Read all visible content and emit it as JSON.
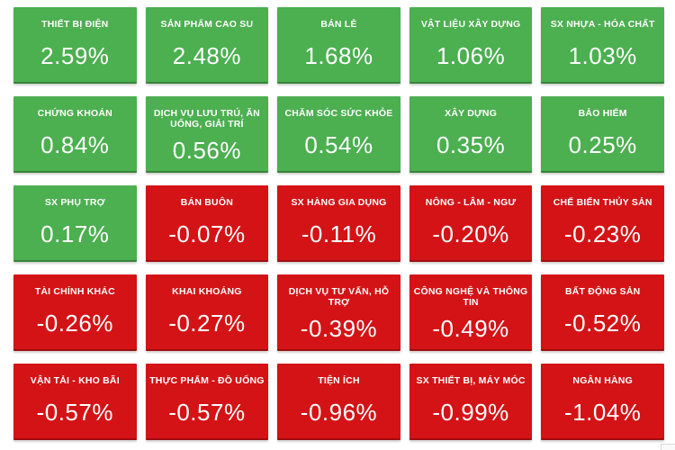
{
  "colors": {
    "positive": "#4caf50",
    "negative": "#d41316",
    "tile_text": "#ffffff",
    "background": "#ffffff"
  },
  "chart_data": {
    "type": "heatmap",
    "unit": "%",
    "layout": {
      "columns": 5,
      "rows": 5,
      "legend": "none",
      "order": "descending by change"
    },
    "points": [
      {
        "label": "THIẾT BỊ ĐIỆN",
        "value": 2.59,
        "display": "2.59%",
        "direction": "up"
      },
      {
        "label": "SẢN PHẨM CAO SU",
        "value": 2.48,
        "display": "2.48%",
        "direction": "up"
      },
      {
        "label": "BÁN LẺ",
        "value": 1.68,
        "display": "1.68%",
        "direction": "up"
      },
      {
        "label": "VẬT LIỆU XÂY DỰNG",
        "value": 1.06,
        "display": "1.06%",
        "direction": "up"
      },
      {
        "label": "SX NHỰA - HÓA CHẤT",
        "value": 1.03,
        "display": "1.03%",
        "direction": "up"
      },
      {
        "label": "CHỨNG KHOÁN",
        "value": 0.84,
        "display": "0.84%",
        "direction": "up"
      },
      {
        "label": "DỊCH VỤ LƯU TRÚ, ĂN UỐNG, GIẢI TRÍ",
        "value": 0.56,
        "display": "0.56%",
        "direction": "up"
      },
      {
        "label": "CHĂM SÓC SỨC KHỎE",
        "value": 0.54,
        "display": "0.54%",
        "direction": "up"
      },
      {
        "label": "XÂY DỰNG",
        "value": 0.35,
        "display": "0.35%",
        "direction": "up"
      },
      {
        "label": "BẢO HIỂM",
        "value": 0.25,
        "display": "0.25%",
        "direction": "up"
      },
      {
        "label": "SX PHỤ TRỢ",
        "value": 0.17,
        "display": "0.17%",
        "direction": "up"
      },
      {
        "label": "BÁN BUÔN",
        "value": -0.07,
        "display": "-0.07%",
        "direction": "down"
      },
      {
        "label": "SX HÀNG GIA DỤNG",
        "value": -0.11,
        "display": "-0.11%",
        "direction": "down"
      },
      {
        "label": "NÔNG - LÂM - NGƯ",
        "value": -0.2,
        "display": "-0.20%",
        "direction": "down"
      },
      {
        "label": "CHẾ BIẾN THỦY SẢN",
        "value": -0.23,
        "display": "-0.23%",
        "direction": "down"
      },
      {
        "label": "TÀI CHÍNH KHÁC",
        "value": -0.26,
        "display": "-0.26%",
        "direction": "down"
      },
      {
        "label": "KHAI KHOÁNG",
        "value": -0.27,
        "display": "-0.27%",
        "direction": "down"
      },
      {
        "label": "DỊCH VỤ TƯ VẤN, HỖ TRỢ",
        "value": -0.39,
        "display": "-0.39%",
        "direction": "down"
      },
      {
        "label": "CÔNG NGHỆ VÀ THÔNG TIN",
        "value": -0.49,
        "display": "-0.49%",
        "direction": "down"
      },
      {
        "label": "BẤT ĐỘNG SẢN",
        "value": -0.52,
        "display": "-0.52%",
        "direction": "down"
      },
      {
        "label": "VẬN TẢI - KHO BÃI",
        "value": -0.57,
        "display": "-0.57%",
        "direction": "down"
      },
      {
        "label": "THỰC PHẨM - ĐỒ UỐNG",
        "value": -0.57,
        "display": "-0.57%",
        "direction": "down"
      },
      {
        "label": "TIỆN ÍCH",
        "value": -0.96,
        "display": "-0.96%",
        "direction": "down"
      },
      {
        "label": "SX THIẾT BỊ, MÁY MÓC",
        "value": -0.99,
        "display": "-0.99%",
        "direction": "down"
      },
      {
        "label": "NGÂN HÀNG",
        "value": -1.04,
        "display": "-1.04%",
        "direction": "down"
      }
    ]
  }
}
